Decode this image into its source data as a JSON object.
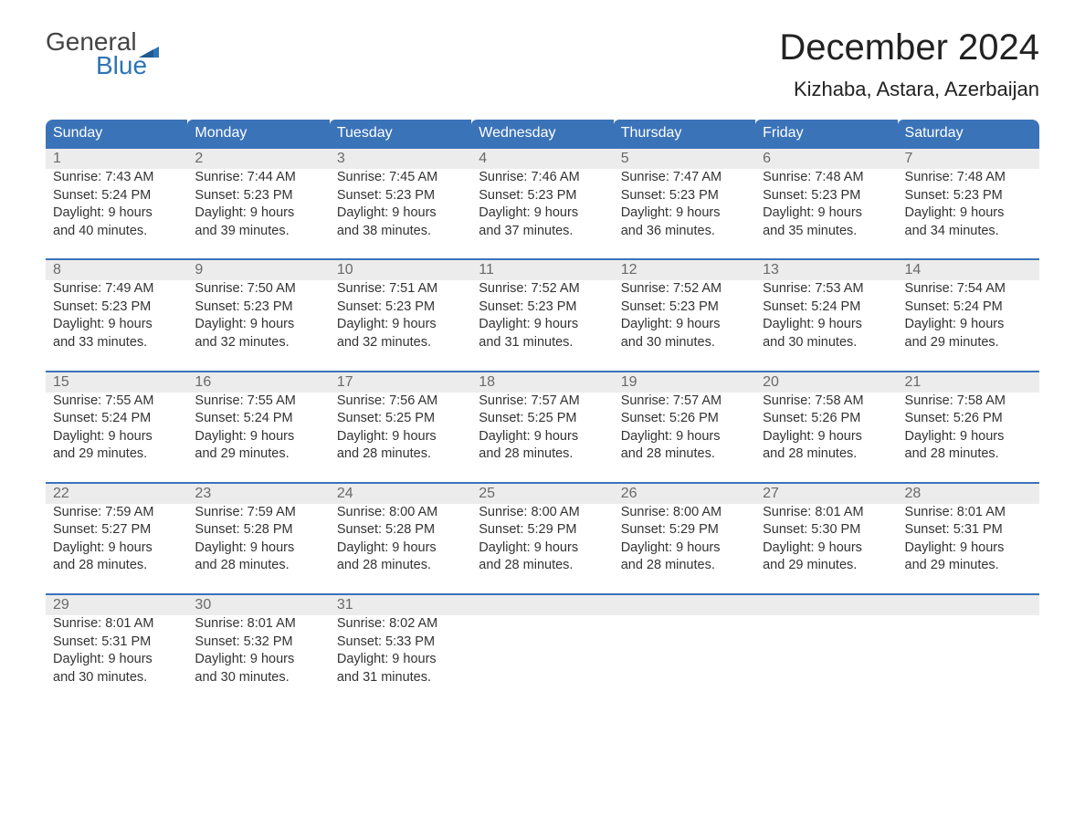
{
  "logo": {
    "text_gray": "General",
    "text_blue": "Blue"
  },
  "title": "December 2024",
  "location": "Kizhaba, Astara, Azerbaijan",
  "colors": {
    "header_bg": "#3b73b9",
    "header_text": "#ffffff",
    "daynum_bg": "#ececec",
    "daynum_border": "#3b73b9",
    "daynum_text": "#6a6a6a",
    "body_text": "#333333",
    "logo_gray": "#444444",
    "logo_blue": "#2e74b5",
    "background": "#ffffff"
  },
  "typography": {
    "title_fontsize": 40,
    "location_fontsize": 22,
    "header_fontsize": 16,
    "cell_fontsize": 14.5,
    "logo_fontsize": 28
  },
  "layout": {
    "columns": 7,
    "rows": 5
  },
  "weekdays": [
    "Sunday",
    "Monday",
    "Tuesday",
    "Wednesday",
    "Thursday",
    "Friday",
    "Saturday"
  ],
  "weeks": [
    [
      {
        "day": "1",
        "sunrise": "Sunrise: 7:43 AM",
        "sunset": "Sunset: 5:24 PM",
        "dl1": "Daylight: 9 hours",
        "dl2": "and 40 minutes."
      },
      {
        "day": "2",
        "sunrise": "Sunrise: 7:44 AM",
        "sunset": "Sunset: 5:23 PM",
        "dl1": "Daylight: 9 hours",
        "dl2": "and 39 minutes."
      },
      {
        "day": "3",
        "sunrise": "Sunrise: 7:45 AM",
        "sunset": "Sunset: 5:23 PM",
        "dl1": "Daylight: 9 hours",
        "dl2": "and 38 minutes."
      },
      {
        "day": "4",
        "sunrise": "Sunrise: 7:46 AM",
        "sunset": "Sunset: 5:23 PM",
        "dl1": "Daylight: 9 hours",
        "dl2": "and 37 minutes."
      },
      {
        "day": "5",
        "sunrise": "Sunrise: 7:47 AM",
        "sunset": "Sunset: 5:23 PM",
        "dl1": "Daylight: 9 hours",
        "dl2": "and 36 minutes."
      },
      {
        "day": "6",
        "sunrise": "Sunrise: 7:48 AM",
        "sunset": "Sunset: 5:23 PM",
        "dl1": "Daylight: 9 hours",
        "dl2": "and 35 minutes."
      },
      {
        "day": "7",
        "sunrise": "Sunrise: 7:48 AM",
        "sunset": "Sunset: 5:23 PM",
        "dl1": "Daylight: 9 hours",
        "dl2": "and 34 minutes."
      }
    ],
    [
      {
        "day": "8",
        "sunrise": "Sunrise: 7:49 AM",
        "sunset": "Sunset: 5:23 PM",
        "dl1": "Daylight: 9 hours",
        "dl2": "and 33 minutes."
      },
      {
        "day": "9",
        "sunrise": "Sunrise: 7:50 AM",
        "sunset": "Sunset: 5:23 PM",
        "dl1": "Daylight: 9 hours",
        "dl2": "and 32 minutes."
      },
      {
        "day": "10",
        "sunrise": "Sunrise: 7:51 AM",
        "sunset": "Sunset: 5:23 PM",
        "dl1": "Daylight: 9 hours",
        "dl2": "and 32 minutes."
      },
      {
        "day": "11",
        "sunrise": "Sunrise: 7:52 AM",
        "sunset": "Sunset: 5:23 PM",
        "dl1": "Daylight: 9 hours",
        "dl2": "and 31 minutes."
      },
      {
        "day": "12",
        "sunrise": "Sunrise: 7:52 AM",
        "sunset": "Sunset: 5:23 PM",
        "dl1": "Daylight: 9 hours",
        "dl2": "and 30 minutes."
      },
      {
        "day": "13",
        "sunrise": "Sunrise: 7:53 AM",
        "sunset": "Sunset: 5:24 PM",
        "dl1": "Daylight: 9 hours",
        "dl2": "and 30 minutes."
      },
      {
        "day": "14",
        "sunrise": "Sunrise: 7:54 AM",
        "sunset": "Sunset: 5:24 PM",
        "dl1": "Daylight: 9 hours",
        "dl2": "and 29 minutes."
      }
    ],
    [
      {
        "day": "15",
        "sunrise": "Sunrise: 7:55 AM",
        "sunset": "Sunset: 5:24 PM",
        "dl1": "Daylight: 9 hours",
        "dl2": "and 29 minutes."
      },
      {
        "day": "16",
        "sunrise": "Sunrise: 7:55 AM",
        "sunset": "Sunset: 5:24 PM",
        "dl1": "Daylight: 9 hours",
        "dl2": "and 29 minutes."
      },
      {
        "day": "17",
        "sunrise": "Sunrise: 7:56 AM",
        "sunset": "Sunset: 5:25 PM",
        "dl1": "Daylight: 9 hours",
        "dl2": "and 28 minutes."
      },
      {
        "day": "18",
        "sunrise": "Sunrise: 7:57 AM",
        "sunset": "Sunset: 5:25 PM",
        "dl1": "Daylight: 9 hours",
        "dl2": "and 28 minutes."
      },
      {
        "day": "19",
        "sunrise": "Sunrise: 7:57 AM",
        "sunset": "Sunset: 5:26 PM",
        "dl1": "Daylight: 9 hours",
        "dl2": "and 28 minutes."
      },
      {
        "day": "20",
        "sunrise": "Sunrise: 7:58 AM",
        "sunset": "Sunset: 5:26 PM",
        "dl1": "Daylight: 9 hours",
        "dl2": "and 28 minutes."
      },
      {
        "day": "21",
        "sunrise": "Sunrise: 7:58 AM",
        "sunset": "Sunset: 5:26 PM",
        "dl1": "Daylight: 9 hours",
        "dl2": "and 28 minutes."
      }
    ],
    [
      {
        "day": "22",
        "sunrise": "Sunrise: 7:59 AM",
        "sunset": "Sunset: 5:27 PM",
        "dl1": "Daylight: 9 hours",
        "dl2": "and 28 minutes."
      },
      {
        "day": "23",
        "sunrise": "Sunrise: 7:59 AM",
        "sunset": "Sunset: 5:28 PM",
        "dl1": "Daylight: 9 hours",
        "dl2": "and 28 minutes."
      },
      {
        "day": "24",
        "sunrise": "Sunrise: 8:00 AM",
        "sunset": "Sunset: 5:28 PM",
        "dl1": "Daylight: 9 hours",
        "dl2": "and 28 minutes."
      },
      {
        "day": "25",
        "sunrise": "Sunrise: 8:00 AM",
        "sunset": "Sunset: 5:29 PM",
        "dl1": "Daylight: 9 hours",
        "dl2": "and 28 minutes."
      },
      {
        "day": "26",
        "sunrise": "Sunrise: 8:00 AM",
        "sunset": "Sunset: 5:29 PM",
        "dl1": "Daylight: 9 hours",
        "dl2": "and 28 minutes."
      },
      {
        "day": "27",
        "sunrise": "Sunrise: 8:01 AM",
        "sunset": "Sunset: 5:30 PM",
        "dl1": "Daylight: 9 hours",
        "dl2": "and 29 minutes."
      },
      {
        "day": "28",
        "sunrise": "Sunrise: 8:01 AM",
        "sunset": "Sunset: 5:31 PM",
        "dl1": "Daylight: 9 hours",
        "dl2": "and 29 minutes."
      }
    ],
    [
      {
        "day": "29",
        "sunrise": "Sunrise: 8:01 AM",
        "sunset": "Sunset: 5:31 PM",
        "dl1": "Daylight: 9 hours",
        "dl2": "and 30 minutes."
      },
      {
        "day": "30",
        "sunrise": "Sunrise: 8:01 AM",
        "sunset": "Sunset: 5:32 PM",
        "dl1": "Daylight: 9 hours",
        "dl2": "and 30 minutes."
      },
      {
        "day": "31",
        "sunrise": "Sunrise: 8:02 AM",
        "sunset": "Sunset: 5:33 PM",
        "dl1": "Daylight: 9 hours",
        "dl2": "and 31 minutes."
      },
      null,
      null,
      null,
      null
    ]
  ]
}
